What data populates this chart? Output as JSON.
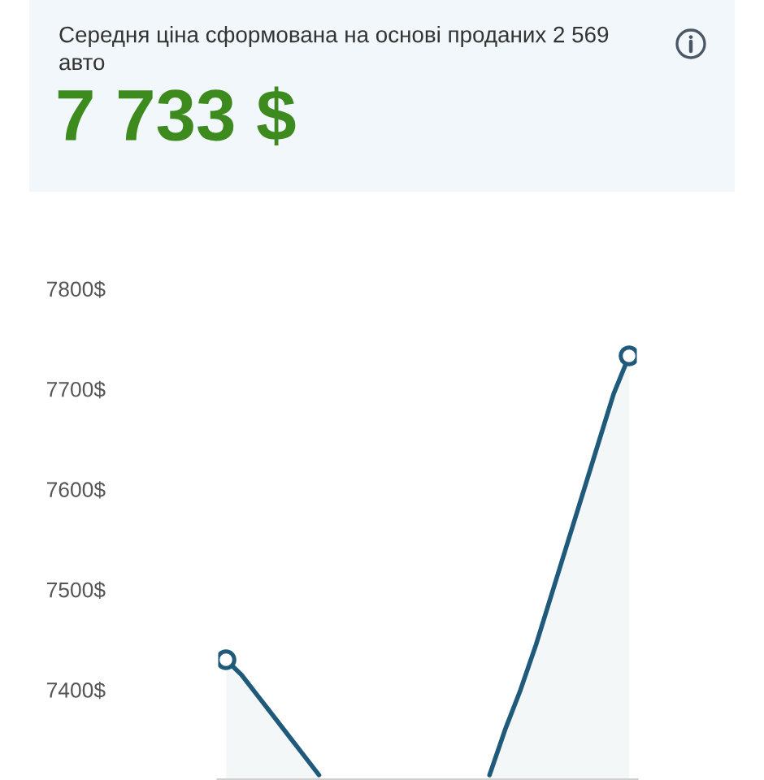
{
  "chart_data": {
    "type": "area",
    "title": "Середня ціна сформована на основі проданих 2 569\nавто",
    "subtitle": "7 733 $",
    "categories": [
      null,
      null,
      null,
      null,
      null,
      null,
      null,
      null,
      null,
      null,
      null,
      null,
      null,
      null,
      null,
      null,
      null,
      null,
      null,
      null,
      null,
      null,
      null,
      null,
      null,
      null,
      null
    ],
    "series": [
      {
        "color": "#1f5a7a",
        "marker": "none",
        "values": [
          7430,
          7415,
          7395,
          7375,
          7355,
          7335,
          7315,
          null,
          null,
          null,
          null,
          null,
          null,
          null,
          null,
          null,
          null,
          7315,
          7360,
          7400,
          7445,
          7495,
          7545,
          7595,
          7645,
          7695,
          7733
        ]
      },
      {
        "type": "scatter",
        "color": "#1f5a7a",
        "marker": "circle",
        "values": [
          7430,
          null,
          null,
          null,
          null,
          null,
          null,
          null,
          null,
          null,
          null,
          null,
          null,
          null,
          null,
          null,
          null,
          null,
          null,
          null,
          null,
          null,
          null,
          null,
          null,
          null,
          7733
        ]
      }
    ],
    "ylim": [
      7310,
      7800
    ],
    "yticks": [
      {
        "value": 7400,
        "label": "7400$"
      },
      {
        "value": 7500,
        "label": "7500$"
      },
      {
        "value": 7600,
        "label": "7600$"
      },
      {
        "value": 7700,
        "label": "7700$"
      },
      {
        "value": 7800,
        "label": "7800$"
      }
    ],
    "tick_labels": "y"
  }
}
